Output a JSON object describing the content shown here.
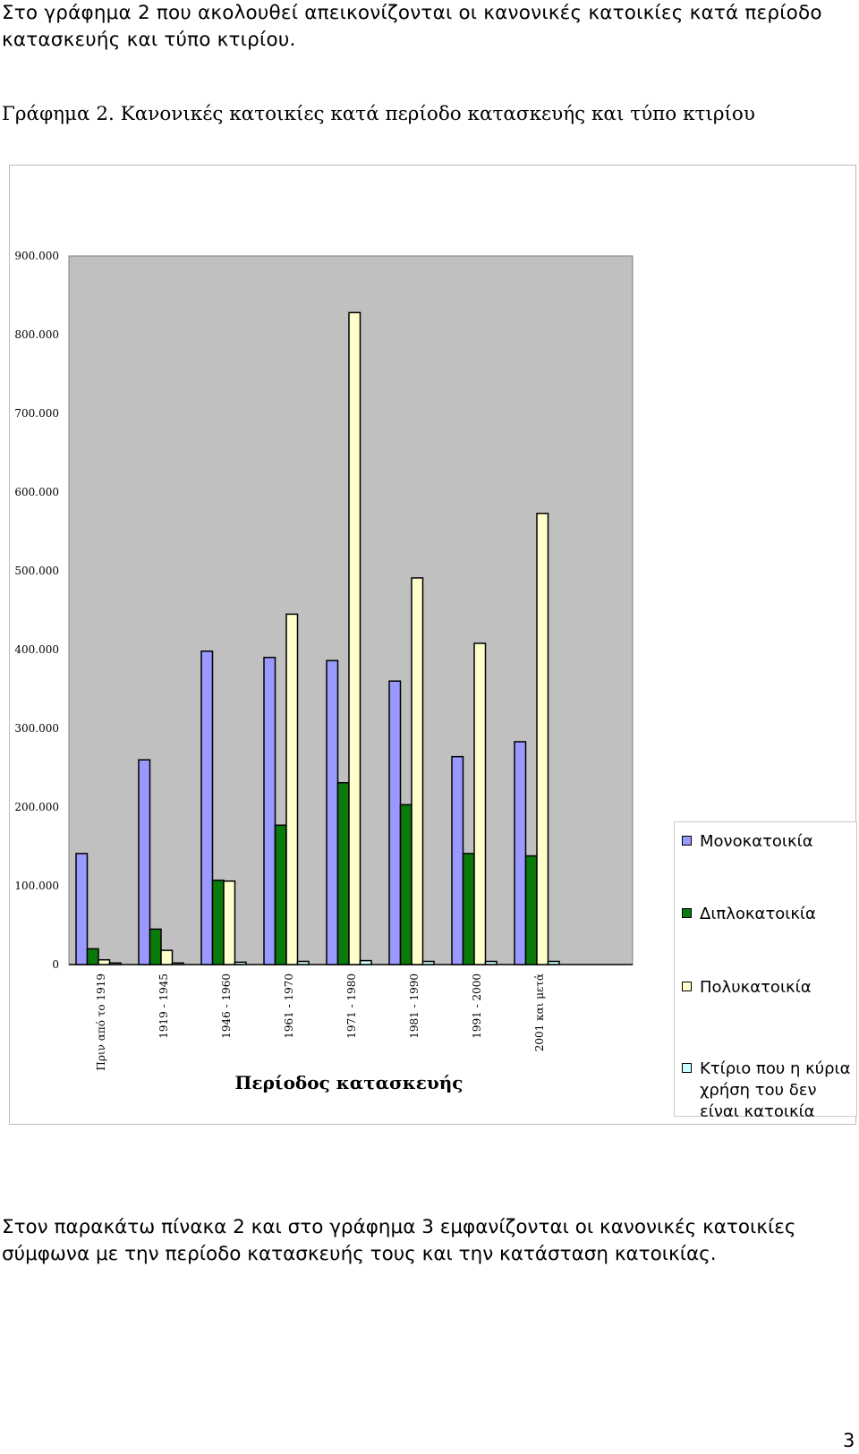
{
  "intro": {
    "line1": "Στο γράφημα 2 που ακολουθεί απεικονίζονται οι κανονικές κατοικίες κατά περίοδο",
    "line2": "κατασκευής και τύπο κτιρίου."
  },
  "chart_heading": "Γράφημα 2. Κανονικές κατοικίες κατά περίοδο κατασκευής και τύπο κτιρίου",
  "chart_data": {
    "type": "bar",
    "xlabel": "Περίοδος κατασκευής",
    "ylabel": "",
    "ylim": [
      0,
      900000
    ],
    "y_ticks": [
      0,
      100000,
      200000,
      300000,
      400000,
      500000,
      600000,
      700000,
      800000,
      900000
    ],
    "y_tick_labels": [
      "0",
      "100.000",
      "200.000",
      "300.000",
      "400.000",
      "500.000",
      "600.000",
      "700.000",
      "800.000",
      "900.000"
    ],
    "categories": [
      "Πριν από το 1919",
      "1919 - 1945",
      "1946 - 1960",
      "1961 - 1970",
      "1971 - 1980",
      "1981 - 1990",
      "1991 - 2000",
      "2001 και μετά"
    ],
    "grid": false,
    "legend_position": "right",
    "plot_background": "#c0c0c0",
    "series": [
      {
        "name": "Μονοκατοικία",
        "color": "#9999ff",
        "values": [
          141000,
          260000,
          398000,
          390000,
          386000,
          360000,
          264000,
          283000
        ]
      },
      {
        "name": "Διπλοκατοικία",
        "color": "#0a7a0a",
        "values": [
          20000,
          45000,
          107000,
          177000,
          231000,
          203000,
          141000,
          138000
        ]
      },
      {
        "name": "Πολυκατοικία",
        "color": "#ffffcc",
        "values": [
          6000,
          18000,
          106000,
          445000,
          828000,
          491000,
          408000,
          573000
        ]
      },
      {
        "name": "Κτίριο που η κύρια χρήση του δεν είναι κατοικία",
        "color": "#ccffff",
        "values": [
          2000,
          2000,
          3000,
          4000,
          5000,
          4000,
          4000,
          4000
        ]
      }
    ]
  },
  "outro": {
    "line1": "Στον παρακάτω πίνακα 2 και στο γράφημα 3 εμφανίζονται οι κανονικές κατοικίες",
    "line2": "σύμφωνα με την περίοδο κατασκευής τους και την κατάσταση κατοικίας."
  },
  "page_number": "3"
}
